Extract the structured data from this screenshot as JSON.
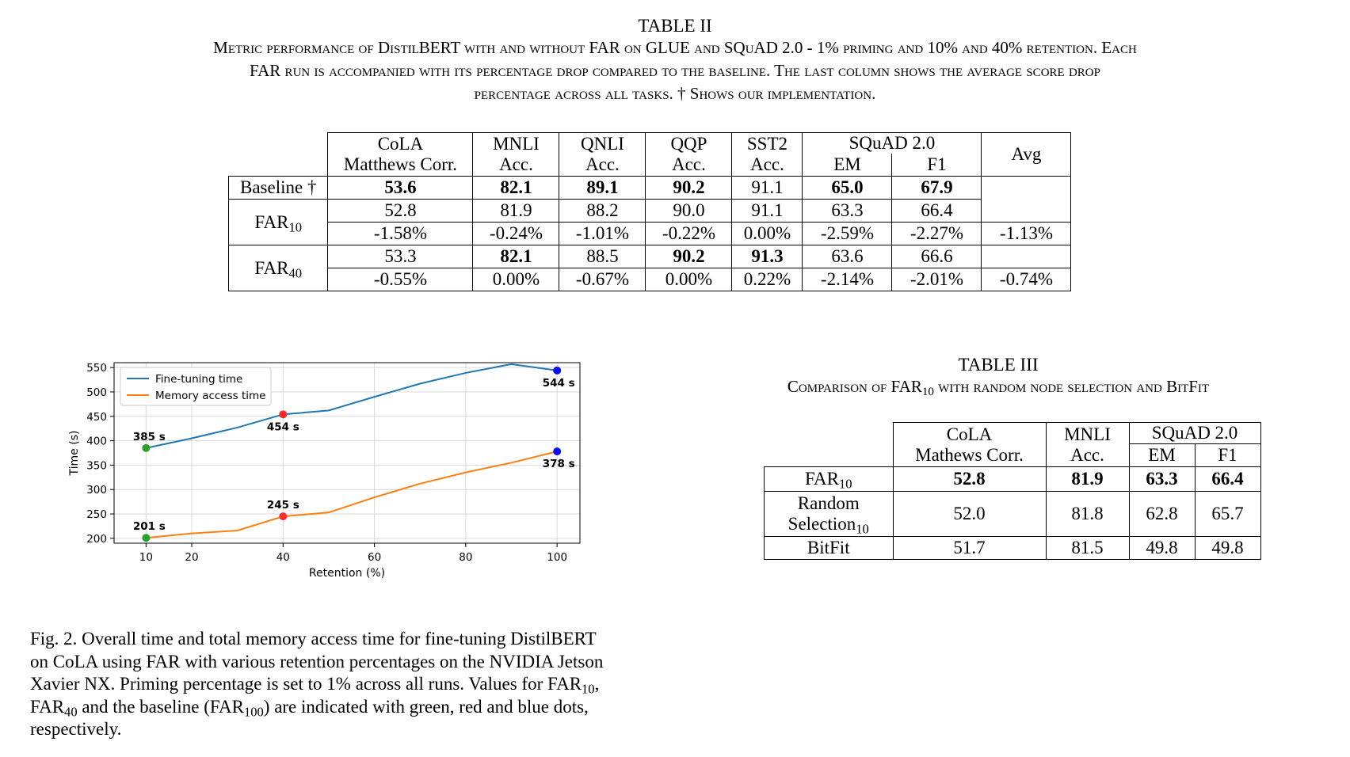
{
  "table2": {
    "title": "TABLE II",
    "caption_lines": [
      "Metric performance of DistilBERT with and without FAR on GLUE and SQuAD 2.0 - 1% priming and 10% and 40% retention. Each",
      "FAR run is accompanied with its percentage drop compared to the baseline. The last column shows the average score drop",
      "percentage across all tasks. † Shows our implementation."
    ],
    "header": {
      "cola": [
        "CoLA",
        "Matthews Corr."
      ],
      "mnli": [
        "MNLI",
        "Acc."
      ],
      "qnli": [
        "QNLI",
        "Acc."
      ],
      "qqp": [
        "QQP",
        "Acc."
      ],
      "sst2": [
        "SST2",
        "Acc."
      ],
      "squad": "SQuAD 2.0",
      "em": "EM",
      "f1": "F1",
      "avg": "Avg"
    },
    "baseline": {
      "label": "Baseline †",
      "values": [
        "53.6",
        "82.1",
        "89.1",
        "90.2",
        "91.1",
        "65.0",
        "67.9"
      ]
    },
    "far10": {
      "label": "FAR",
      "sub": "10",
      "values": [
        "52.8",
        "81.9",
        "88.2",
        "90.0",
        "91.1",
        "63.3",
        "66.4"
      ],
      "drops": [
        "-1.58%",
        "-0.24%",
        "-1.01%",
        "-0.22%",
        "0.00%",
        "-2.59%",
        "-2.27%"
      ],
      "avg": "-1.13%"
    },
    "far40": {
      "label": "FAR",
      "sub": "40",
      "values": [
        "53.3",
        "82.1",
        "88.5",
        "90.2",
        "91.3",
        "63.6",
        "66.6"
      ],
      "drops": [
        "-0.55%",
        "0.00%",
        "-0.67%",
        "0.00%",
        "0.22%",
        "-2.14%",
        "-2.01%"
      ],
      "avg": "-0.74%"
    }
  },
  "table3": {
    "title": "TABLE III",
    "caption_pre": "Comparison of FAR",
    "caption_sub": "10",
    "caption_post": " with random node selection and BitFit",
    "header": {
      "cola": [
        "CoLA",
        "Mathews Corr."
      ],
      "mnli": [
        "MNLI",
        "Acc."
      ],
      "squad": "SQuAD 2.0",
      "em": "EM",
      "f1": "F1"
    },
    "rows": [
      {
        "label": "FAR",
        "sub": "10",
        "values": [
          "52.8",
          "81.9",
          "63.3",
          "66.4"
        ]
      },
      {
        "label1": "Random",
        "label2": "Selection",
        "sub": "10",
        "values": [
          "52.0",
          "81.8",
          "62.8",
          "65.7"
        ]
      },
      {
        "label": "BitFit",
        "values": [
          "51.7",
          "81.5",
          "49.8",
          "49.8"
        ]
      }
    ]
  },
  "chart_data": {
    "type": "line",
    "xlabel": "Retention (%)",
    "ylabel": "Time (s)",
    "xlim": [
      3,
      105
    ],
    "ylim": [
      190,
      560
    ],
    "xticks": [
      10,
      20,
      40,
      60,
      80,
      100
    ],
    "yticks": [
      200,
      250,
      300,
      350,
      400,
      450,
      500,
      550
    ],
    "grid": true,
    "legend_position": "top-left",
    "series": [
      {
        "name": "Fine-tuning time",
        "color": "#1f77b4",
        "x": [
          10,
          20,
          30,
          40,
          50,
          60,
          70,
          80,
          90,
          100
        ],
        "y": [
          385,
          405,
          427,
          454,
          462,
          490,
          517,
          539,
          557,
          544
        ]
      },
      {
        "name": "Memory access time",
        "color": "#ff7f0e",
        "x": [
          10,
          20,
          30,
          40,
          50,
          60,
          70,
          80,
          90,
          100
        ],
        "y": [
          201,
          210,
          216,
          245,
          253,
          284,
          312,
          335,
          355,
          378
        ]
      }
    ],
    "markers": [
      {
        "x": 10,
        "y": 385,
        "color": "#2ca02c",
        "label": "385 s"
      },
      {
        "x": 40,
        "y": 454,
        "color": "#ff2a2a",
        "label": "454 s"
      },
      {
        "x": 100,
        "y": 544,
        "color": "#0b0bff",
        "label": "544 s"
      },
      {
        "x": 10,
        "y": 201,
        "color": "#2ca02c",
        "label": "201 s"
      },
      {
        "x": 40,
        "y": 245,
        "color": "#ff2a2a",
        "label": "245 s"
      },
      {
        "x": 100,
        "y": 378,
        "color": "#0b0bff",
        "label": "378 s"
      }
    ]
  },
  "figure_caption": {
    "l1": "Fig. 2.  Overall time and total memory access time for fine-tuning DistilBERT",
    "l2": "on CoLA using FAR with various retention percentages on the NVIDIA Jetson",
    "l3a": "Xavier NX. Priming percentage is set to 1% across all runs. Values for FAR",
    "l3sub": "10",
    "l3b": ",",
    "l4a": "FAR",
    "l4sub1": "40",
    "l4b": " and the baseline (FAR",
    "l4sub2": "100",
    "l4c": ") are indicated with green, red and blue dots,",
    "l5": "respectively."
  }
}
